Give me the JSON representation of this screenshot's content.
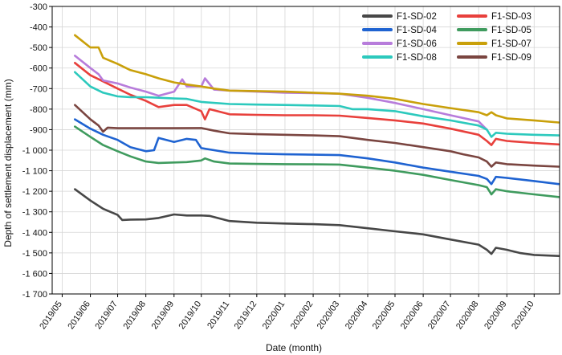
{
  "chart_data": {
    "type": "line",
    "xlabel": "Date (month)",
    "ylabel": "Depth of settlement displacement (mm)",
    "x_ticks": [
      "2019/05",
      "2019/06",
      "2019/07",
      "2019/08",
      "2019/09",
      "2019/10",
      "2019/11",
      "2019/12",
      "2020/01",
      "2020/02",
      "2020/03",
      "2020/04",
      "2020/05",
      "2020/06",
      "2020/07",
      "2020/08",
      "2020/09",
      "2020/10"
    ],
    "xlim": [
      "2019/04/20",
      "2020/10/29"
    ],
    "ylim": [
      -1700,
      -300
    ],
    "y_ticks": [
      -300,
      -400,
      -500,
      -600,
      -700,
      -800,
      -900,
      -1000,
      -1100,
      -1200,
      -1300,
      -1400,
      -1500,
      -1600,
      -1700
    ],
    "y_tick_labels": [
      "-300",
      "-400",
      "-500",
      "-600",
      "-700",
      "-800",
      "-900",
      "-1 000",
      "-1 100",
      "-1 200",
      "-1 300",
      "-1 400",
      "-1 500",
      "-1 600",
      "-1 700"
    ],
    "grid": true,
    "legend_position": "top-right",
    "series": [
      {
        "name": "F1-SD-02",
        "color": "#474747",
        "x": [
          "2019/05/15",
          "2019/06/01",
          "2019/06/15",
          "2019/07/01",
          "2019/07/06",
          "2019/07/15",
          "2019/08/01",
          "2019/08/15",
          "2019/09/01",
          "2019/09/15",
          "2019/10/01",
          "2019/10/10",
          "2019/11/01",
          "2019/12/01",
          "2020/01/01",
          "2020/02/01",
          "2020/03/01",
          "2020/04/01",
          "2020/05/01",
          "2020/06/01",
          "2020/07/01",
          "2020/08/01",
          "2020/08/10",
          "2020/08/15",
          "2020/08/20",
          "2020/09/01",
          "2020/09/15",
          "2020/10/01",
          "2020/10/28"
        ],
        "values": [
          -1190,
          -1245,
          -1285,
          -1315,
          -1340,
          -1338,
          -1337,
          -1330,
          -1313,
          -1318,
          -1318,
          -1320,
          -1345,
          -1353,
          -1357,
          -1360,
          -1365,
          -1380,
          -1395,
          -1410,
          -1435,
          -1460,
          -1485,
          -1505,
          -1475,
          -1485,
          -1500,
          -1510,
          -1515
        ]
      },
      {
        "name": "F1-SD-03",
        "color": "#e8403c",
        "x": [
          "2019/05/15",
          "2019/06/01",
          "2019/06/15",
          "2019/07/01",
          "2019/07/15",
          "2019/08/01",
          "2019/08/15",
          "2019/09/01",
          "2019/09/15",
          "2019/10/01",
          "2019/10/05",
          "2019/10/10",
          "2019/11/01",
          "2019/12/01",
          "2020/01/01",
          "2020/02/01",
          "2020/03/01",
          "2020/04/01",
          "2020/05/01",
          "2020/06/01",
          "2020/07/01",
          "2020/08/01",
          "2020/08/10",
          "2020/08/15",
          "2020/08/20",
          "2020/09/01",
          "2020/10/01",
          "2020/10/28"
        ],
        "values": [
          -575,
          -635,
          -665,
          -700,
          -730,
          -760,
          -790,
          -780,
          -780,
          -810,
          -850,
          -800,
          -825,
          -828,
          -830,
          -830,
          -832,
          -843,
          -855,
          -870,
          -895,
          -925,
          -955,
          -975,
          -945,
          -955,
          -965,
          -972
        ]
      },
      {
        "name": "F1-SD-04",
        "color": "#1f63d1",
        "x": [
          "2019/05/15",
          "2019/06/01",
          "2019/06/15",
          "2019/07/01",
          "2019/07/15",
          "2019/08/01",
          "2019/08/10",
          "2019/08/15",
          "2019/09/01",
          "2019/09/15",
          "2019/09/25",
          "2019/10/01",
          "2019/11/01",
          "2019/12/01",
          "2020/01/01",
          "2020/02/01",
          "2020/03/01",
          "2020/04/01",
          "2020/05/01",
          "2020/06/01",
          "2020/07/01",
          "2020/08/01",
          "2020/08/10",
          "2020/08/15",
          "2020/08/20",
          "2020/09/01",
          "2020/10/01",
          "2020/10/28"
        ],
        "values": [
          -850,
          -895,
          -925,
          -950,
          -985,
          -1005,
          -1000,
          -940,
          -960,
          -945,
          -950,
          -990,
          -1012,
          -1017,
          -1020,
          -1022,
          -1024,
          -1040,
          -1060,
          -1085,
          -1105,
          -1125,
          -1140,
          -1165,
          -1130,
          -1135,
          -1150,
          -1165
        ]
      },
      {
        "name": "F1-SD-05",
        "color": "#3f9b5e",
        "x": [
          "2019/05/15",
          "2019/06/01",
          "2019/06/15",
          "2019/07/01",
          "2019/07/15",
          "2019/08/01",
          "2019/08/15",
          "2019/09/01",
          "2019/09/15",
          "2019/10/01",
          "2019/10/05",
          "2019/10/15",
          "2019/11/01",
          "2019/12/01",
          "2020/01/01",
          "2020/02/01",
          "2020/03/01",
          "2020/04/01",
          "2020/05/01",
          "2020/06/01",
          "2020/07/01",
          "2020/08/01",
          "2020/08/10",
          "2020/08/15",
          "2020/08/20",
          "2020/09/01",
          "2020/10/01",
          "2020/10/28"
        ],
        "values": [
          -885,
          -935,
          -975,
          -1005,
          -1030,
          -1055,
          -1062,
          -1060,
          -1058,
          -1050,
          -1040,
          -1055,
          -1065,
          -1067,
          -1068,
          -1069,
          -1070,
          -1085,
          -1100,
          -1120,
          -1145,
          -1170,
          -1180,
          -1215,
          -1190,
          -1200,
          -1215,
          -1228
        ]
      },
      {
        "name": "F1-SD-06",
        "color": "#b77cdb",
        "x": [
          "2019/05/15",
          "2019/06/01",
          "2019/06/10",
          "2019/06/15",
          "2019/07/01",
          "2019/07/15",
          "2019/08/01",
          "2019/08/15",
          "2019/09/01",
          "2019/09/10",
          "2019/09/15",
          "2019/10/01",
          "2019/10/05",
          "2019/10/15",
          "2019/11/01",
          "2019/12/01",
          "2020/01/01",
          "2020/02/01",
          "2020/03/01",
          "2020/04/01",
          "2020/05/01",
          "2020/06/01",
          "2020/07/01",
          "2020/08/01",
          "2020/08/10"
        ],
        "values": [
          -540,
          -600,
          -630,
          -660,
          -675,
          -695,
          -715,
          -735,
          -715,
          -655,
          -690,
          -690,
          -650,
          -705,
          -710,
          -715,
          -720,
          -722,
          -725,
          -745,
          -770,
          -800,
          -830,
          -860,
          -900
        ]
      },
      {
        "name": "F1-SD-07",
        "color": "#c9a00a",
        "x": [
          "2019/05/15",
          "2019/06/01",
          "2019/06/10",
          "2019/06/15",
          "2019/07/01",
          "2019/07/15",
          "2019/08/01",
          "2019/08/15",
          "2019/09/01",
          "2019/09/15",
          "2019/10/01",
          "2019/10/15",
          "2019/11/01",
          "2019/12/01",
          "2020/01/01",
          "2020/02/01",
          "2020/03/01",
          "2020/04/01",
          "2020/05/01",
          "2020/06/01",
          "2020/07/01",
          "2020/08/01",
          "2020/08/10",
          "2020/08/15",
          "2020/08/20",
          "2020/09/01",
          "2020/10/01",
          "2020/10/28"
        ],
        "values": [
          -440,
          -500,
          -500,
          -550,
          -580,
          -610,
          -630,
          -650,
          -670,
          -680,
          -690,
          -700,
          -710,
          -712,
          -715,
          -720,
          -725,
          -735,
          -750,
          -775,
          -795,
          -815,
          -830,
          -815,
          -830,
          -845,
          -855,
          -865
        ]
      },
      {
        "name": "F1-SD-08",
        "color": "#2cc9bd",
        "x": [
          "2019/05/15",
          "2019/06/01",
          "2019/06/15",
          "2019/07/01",
          "2019/07/15",
          "2019/08/01",
          "2019/09/01",
          "2019/09/15",
          "2019/10/01",
          "2019/11/01",
          "2019/12/01",
          "2020/01/01",
          "2020/02/01",
          "2020/03/01",
          "2020/03/15",
          "2020/04/01",
          "2020/05/01",
          "2020/06/01",
          "2020/07/01",
          "2020/08/01",
          "2020/08/10",
          "2020/08/15",
          "2020/08/20",
          "2020/09/01",
          "2020/10/01",
          "2020/10/28"
        ],
        "values": [
          -620,
          -690,
          -720,
          -738,
          -742,
          -742,
          -748,
          -750,
          -765,
          -775,
          -778,
          -780,
          -782,
          -785,
          -800,
          -800,
          -810,
          -835,
          -855,
          -880,
          -900,
          -935,
          -915,
          -920,
          -925,
          -928
        ]
      },
      {
        "name": "F1-SD-09",
        "color": "#7a4540",
        "x": [
          "2019/05/15",
          "2019/06/01",
          "2019/06/10",
          "2019/06/15",
          "2019/06/20",
          "2019/07/01",
          "2019/08/01",
          "2019/09/01",
          "2019/10/01",
          "2019/10/15",
          "2019/11/01",
          "2019/12/01",
          "2020/01/01",
          "2020/02/01",
          "2020/03/01",
          "2020/04/01",
          "2020/05/01",
          "2020/06/01",
          "2020/07/01",
          "2020/07/15",
          "2020/08/01",
          "2020/08/10",
          "2020/08/15",
          "2020/08/20",
          "2020/09/01",
          "2020/10/01",
          "2020/10/28"
        ],
        "values": [
          -780,
          -850,
          -880,
          -910,
          -890,
          -893,
          -893,
          -893,
          -892,
          -905,
          -918,
          -922,
          -925,
          -928,
          -932,
          -950,
          -965,
          -985,
          -1005,
          -1020,
          -1035,
          -1055,
          -1080,
          -1060,
          -1068,
          -1075,
          -1080
        ]
      }
    ]
  }
}
